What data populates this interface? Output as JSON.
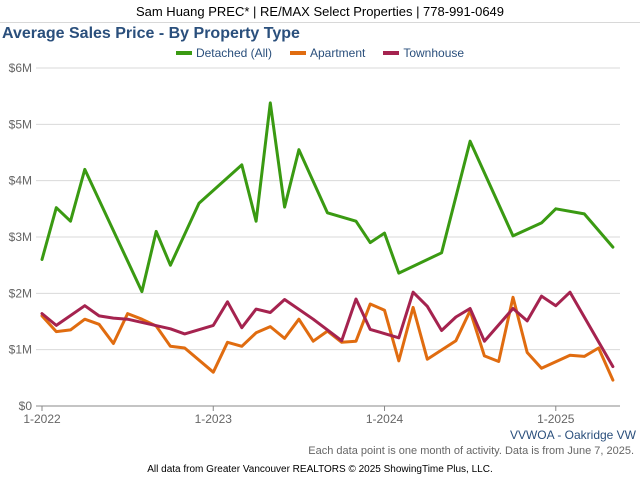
{
  "header": {
    "agent_line": "Sam Huang PREC* | RE/MAX Select Properties | 778-991-0649"
  },
  "footer": {
    "region": "VVWOA - Oakridge VW",
    "note": "Each data point is one month of activity. Data is from June 7, 2025.",
    "source": "All data from Greater Vancouver REALTORS © 2025 ShowingTime Plus, LLC."
  },
  "chart_data": {
    "type": "line",
    "title": "Average Sales Price - By Property Type",
    "xlabel": "",
    "ylabel": "",
    "ylim": [
      0,
      6000000
    ],
    "y_ticks": [
      "$0",
      "$1M",
      "$2M",
      "$3M",
      "$4M",
      "$5M",
      "$6M"
    ],
    "x_ticks": [
      {
        "label": "1-2022",
        "month": "2022-01"
      },
      {
        "label": "1-2023",
        "month": "2023-01"
      },
      {
        "label": "1-2024",
        "month": "2024-01"
      },
      {
        "label": "1-2025",
        "month": "2025-01"
      }
    ],
    "grid": "horizontal",
    "legend_position": "top",
    "series": [
      {
        "name": "Detached (All)",
        "color": "#3a9a12",
        "points": [
          [
            "2022-01",
            2600000
          ],
          [
            "2022-02",
            3520000
          ],
          [
            "2022-03",
            3280000
          ],
          [
            "2022-04",
            4200000
          ],
          [
            "2022-08",
            2030000
          ],
          [
            "2022-09",
            3100000
          ],
          [
            "2022-10",
            2500000
          ],
          [
            "2022-12",
            3600000
          ],
          [
            "2023-03",
            4280000
          ],
          [
            "2023-04",
            3280000
          ],
          [
            "2023-05",
            5380000
          ],
          [
            "2023-06",
            3530000
          ],
          [
            "2023-07",
            4550000
          ],
          [
            "2023-09",
            3430000
          ],
          [
            "2023-11",
            3280000
          ],
          [
            "2023-12",
            2900000
          ],
          [
            "2024-01",
            3070000
          ],
          [
            "2024-02",
            2360000
          ],
          [
            "2024-05",
            2720000
          ],
          [
            "2024-07",
            4700000
          ],
          [
            "2024-10",
            3020000
          ],
          [
            "2024-12",
            3250000
          ],
          [
            "2025-01",
            3500000
          ],
          [
            "2025-03",
            3410000
          ],
          [
            "2025-05",
            2820000
          ]
        ]
      },
      {
        "name": "Apartment",
        "color": "#e06c10",
        "points": [
          [
            "2022-01",
            1600000
          ],
          [
            "2022-02",
            1320000
          ],
          [
            "2022-03",
            1350000
          ],
          [
            "2022-04",
            1540000
          ],
          [
            "2022-05",
            1450000
          ],
          [
            "2022-06",
            1110000
          ],
          [
            "2022-07",
            1640000
          ],
          [
            "2022-08",
            1540000
          ],
          [
            "2022-09",
            1420000
          ],
          [
            "2022-10",
            1060000
          ],
          [
            "2022-11",
            1030000
          ],
          [
            "2023-01",
            600000
          ],
          [
            "2023-02",
            1130000
          ],
          [
            "2023-03",
            1060000
          ],
          [
            "2023-04",
            1300000
          ],
          [
            "2023-05",
            1410000
          ],
          [
            "2023-06",
            1200000
          ],
          [
            "2023-07",
            1540000
          ],
          [
            "2023-08",
            1150000
          ],
          [
            "2023-09",
            1330000
          ],
          [
            "2023-10",
            1130000
          ],
          [
            "2023-11",
            1150000
          ],
          [
            "2023-12",
            1810000
          ],
          [
            "2024-01",
            1700000
          ],
          [
            "2024-02",
            800000
          ],
          [
            "2024-03",
            1750000
          ],
          [
            "2024-04",
            830000
          ],
          [
            "2024-06",
            1160000
          ],
          [
            "2024-07",
            1690000
          ],
          [
            "2024-08",
            890000
          ],
          [
            "2024-09",
            790000
          ],
          [
            "2024-10",
            1930000
          ],
          [
            "2024-11",
            950000
          ],
          [
            "2024-12",
            670000
          ],
          [
            "2025-02",
            900000
          ],
          [
            "2025-03",
            880000
          ],
          [
            "2025-04",
            1030000
          ],
          [
            "2025-05",
            460000
          ]
        ]
      },
      {
        "name": "Townhouse",
        "color": "#a5234f",
        "points": [
          [
            "2022-01",
            1640000
          ],
          [
            "2022-02",
            1430000
          ],
          [
            "2022-04",
            1780000
          ],
          [
            "2022-05",
            1600000
          ],
          [
            "2022-06",
            1560000
          ],
          [
            "2022-07",
            1540000
          ],
          [
            "2022-10",
            1370000
          ],
          [
            "2022-11",
            1280000
          ],
          [
            "2023-01",
            1430000
          ],
          [
            "2023-02",
            1850000
          ],
          [
            "2023-03",
            1390000
          ],
          [
            "2023-04",
            1720000
          ],
          [
            "2023-05",
            1660000
          ],
          [
            "2023-06",
            1890000
          ],
          [
            "2023-08",
            1540000
          ],
          [
            "2023-10",
            1160000
          ],
          [
            "2023-11",
            1900000
          ],
          [
            "2023-12",
            1360000
          ],
          [
            "2024-02",
            1210000
          ],
          [
            "2024-03",
            2020000
          ],
          [
            "2024-04",
            1770000
          ],
          [
            "2024-05",
            1340000
          ],
          [
            "2024-06",
            1580000
          ],
          [
            "2024-07",
            1730000
          ],
          [
            "2024-08",
            1150000
          ],
          [
            "2024-10",
            1730000
          ],
          [
            "2024-11",
            1510000
          ],
          [
            "2024-12",
            1950000
          ],
          [
            "2025-01",
            1780000
          ],
          [
            "2025-02",
            2020000
          ],
          [
            "2025-05",
            700000
          ]
        ]
      }
    ]
  }
}
